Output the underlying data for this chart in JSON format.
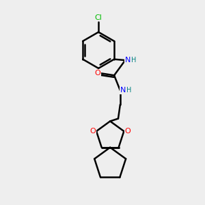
{
  "bg_color": "#eeeeee",
  "bond_color": "#000000",
  "bond_width": 1.8,
  "atom_colors": {
    "N": "#0000ff",
    "O": "#ff0000",
    "Cl": "#00bb00",
    "H": "#008080",
    "C": "#000000"
  },
  "font_size": 8,
  "fig_size": [
    3.0,
    3.0
  ],
  "dpi": 100
}
